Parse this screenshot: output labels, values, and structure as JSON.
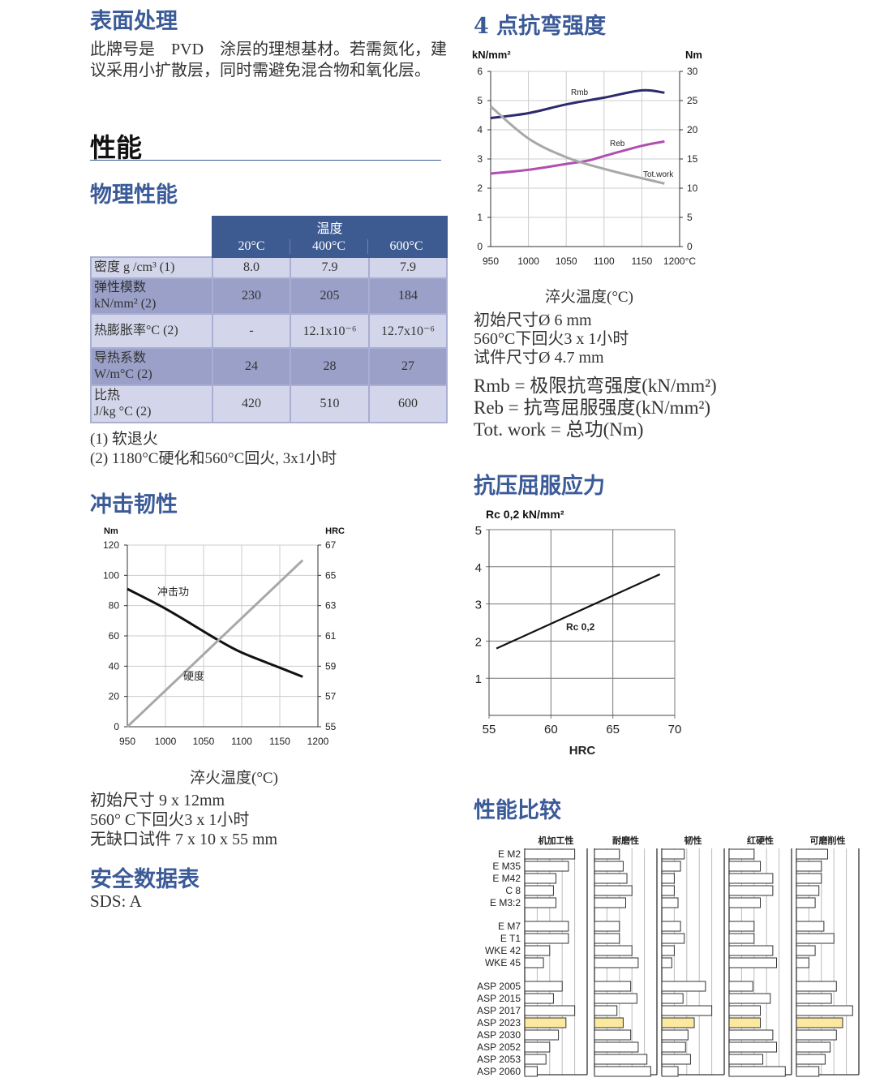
{
  "surface": {
    "title": "表面处理",
    "text": "此牌号是　PVD　涂层的理想基材。若需氮化，建议采用小扩散层，同时需避免混合物和氧化层。"
  },
  "performance": {
    "title": "性能"
  },
  "physical": {
    "title": "物理性能",
    "header_group": "温度",
    "columns": [
      "20°C",
      "400°C",
      "600°C"
    ],
    "rows": [
      {
        "label": "密度 g /cm³ (1)",
        "values": [
          "8.0",
          "7.9",
          "7.9"
        ]
      },
      {
        "label": "弹性模数\nkN/mm² (2)",
        "values": [
          "230",
          "205",
          "184"
        ]
      },
      {
        "label": "热膨胀率°C (2)",
        "values": [
          "-",
          "12.1x10⁻⁶",
          "12.7x10⁻⁶"
        ]
      },
      {
        "label": "导热系数\nW/m°C (2)",
        "values": [
          "24",
          "28",
          "27"
        ]
      },
      {
        "label": "比热\nJ/kg °C (2)",
        "values": [
          "420",
          "510",
          "600"
        ]
      }
    ],
    "notes": [
      "(1) 软退火",
      "(2) 1180°C硬化和560°C回火, 3x1小时"
    ]
  },
  "impact": {
    "title": "冲击韧性",
    "xlabel": "淬火温度(°C)",
    "notes": [
      "初始尺寸 9 x 12mm",
      "560° C下回火3 x 1小时",
      "无缺口试件 7 x 10 x 55 mm"
    ]
  },
  "sds": {
    "title": "安全数据表",
    "text": "SDS: A"
  },
  "bend": {
    "title": "4 点抗弯强度",
    "xlabel": "淬火温度(°C)",
    "notes": [
      "初始尺寸Ø 6 mm",
      "560°C下回火3 x 1小时",
      "试件尺寸Ø 4.7 mm"
    ],
    "legend": [
      "Rmb = 极限抗弯强度(kN/mm²)",
      "Reb =  抗弯屈服强度(kN/mm²)",
      "Tot. work = 总功(Nm)"
    ]
  },
  "compress": {
    "title": "抗压屈服应力"
  },
  "compare": {
    "title": "性能比较"
  },
  "colors": {
    "heading": "#3b5a98",
    "table_header": "#3d5a91",
    "rmb": "#2b2a6e",
    "reb": "#b04fb0",
    "totwork": "#a8a8a8",
    "highlight": "#fbe9a0"
  },
  "chart_data": [
    {
      "type": "line",
      "title": "",
      "ylabel": "kN/mm²",
      "y2label": "Nm",
      "xunit": "°C",
      "xlim": [
        950,
        1200
      ],
      "ylim": [
        0,
        6
      ],
      "y2lim": [
        0,
        30
      ],
      "xticks": [
        950,
        1000,
        1050,
        1100,
        1150,
        1200
      ],
      "yticks": [
        0,
        1,
        2,
        3,
        4,
        5,
        6
      ],
      "y2ticks": [
        0,
        5,
        10,
        15,
        20,
        25,
        30
      ],
      "grid": true,
      "series": [
        {
          "name": "Rmb",
          "axis": "left",
          "x": [
            950,
            1000,
            1050,
            1100,
            1150,
            1180
          ],
          "y": [
            4.4,
            4.57,
            4.87,
            5.1,
            5.35,
            5.27
          ]
        },
        {
          "name": "Reb",
          "axis": "left",
          "x": [
            950,
            1000,
            1050,
            1080,
            1100,
            1150,
            1180
          ],
          "y": [
            2.5,
            2.63,
            2.83,
            2.95,
            3.1,
            3.45,
            3.6
          ]
        },
        {
          "name": "Tot.work",
          "axis": "right",
          "x": [
            950,
            1000,
            1050,
            1100,
            1150,
            1180
          ],
          "y": [
            24,
            18.5,
            15.3,
            13.3,
            11.7,
            10.8
          ]
        }
      ]
    },
    {
      "type": "line",
      "ylabel": "Nm",
      "y2label": "HRC",
      "xlim": [
        950,
        1200
      ],
      "ylim": [
        0,
        120
      ],
      "y2lim": [
        55,
        67
      ],
      "xticks": [
        950,
        1000,
        1050,
        1100,
        1150,
        1200
      ],
      "yticks": [
        0,
        20,
        40,
        60,
        80,
        100,
        120
      ],
      "y2ticks": [
        55,
        57,
        59,
        61,
        63,
        65,
        67
      ],
      "grid": true,
      "series": [
        {
          "name": "冲击功",
          "axis": "left",
          "x": [
            950,
            1000,
            1050,
            1070,
            1100,
            1150,
            1180
          ],
          "y": [
            91,
            78,
            63,
            57,
            49,
            39,
            33
          ]
        },
        {
          "name": "硬度",
          "axis": "right",
          "x": [
            950,
            1180
          ],
          "y": [
            55,
            66
          ]
        }
      ]
    },
    {
      "type": "line",
      "ylabel": "Rc 0,2 kN/mm²",
      "xlabel": "HRC",
      "xlim": [
        55,
        70
      ],
      "ylim": [
        0,
        5
      ],
      "xticks": [
        55,
        60,
        65,
        70
      ],
      "yticks": [
        1,
        2,
        3,
        4,
        5
      ],
      "grid": true,
      "series": [
        {
          "name": "Rc 0,2",
          "x": [
            55.6,
            68.8
          ],
          "y": [
            1.8,
            3.8
          ]
        }
      ]
    },
    {
      "type": "bar",
      "orientation": "horizontal",
      "xlim": [
        0,
        5
      ],
      "grid": true,
      "categories": [
        "E M2",
        "E M35",
        "E M42",
        "C 8",
        "E M3:2",
        "E M7",
        "E T1",
        "WKE 42",
        "WKE 45",
        "ASP 2005",
        "ASP 2015",
        "ASP 2017",
        "ASP 2023",
        "ASP 2030",
        "ASP 2052",
        "ASP 2053",
        "ASP 2060"
      ],
      "groups": [
        5,
        4,
        8
      ],
      "highlight": "ASP 2023",
      "series": [
        {
          "name": "机加工性",
          "values": [
            4,
            3.5,
            2.5,
            2.3,
            2.5,
            3.5,
            3.5,
            2,
            1.5,
            3,
            2.3,
            4,
            3.3,
            2.7,
            2,
            1.7,
            1
          ]
        },
        {
          "name": "耐磨性",
          "values": [
            2,
            2.3,
            2.6,
            3,
            2.5,
            2,
            2,
            3,
            3.5,
            2.9,
            3.4,
            1.8,
            2.3,
            2.9,
            3.5,
            4.2,
            4.5
          ]
        },
        {
          "name": "韧性",
          "values": [
            1.8,
            1.5,
            1,
            1,
            1.3,
            1.5,
            1.8,
            1,
            0.8,
            3.5,
            1.7,
            4,
            2.6,
            2.1,
            1.9,
            2.3,
            1.3
          ]
        },
        {
          "name": "红硬性",
          "values": [
            2,
            2.5,
            3.5,
            3.5,
            2.5,
            2,
            2,
            3.5,
            3.8,
            1.9,
            3.3,
            2.5,
            2.5,
            3.5,
            3.8,
            2.7,
            4.5
          ]
        },
        {
          "name": "可磨削性",
          "values": [
            2.5,
            2,
            2,
            1.8,
            1.5,
            2.2,
            3,
            1.5,
            1,
            3.2,
            2.8,
            4.5,
            3.7,
            3.2,
            2.7,
            2.3,
            1.8
          ]
        }
      ]
    }
  ]
}
